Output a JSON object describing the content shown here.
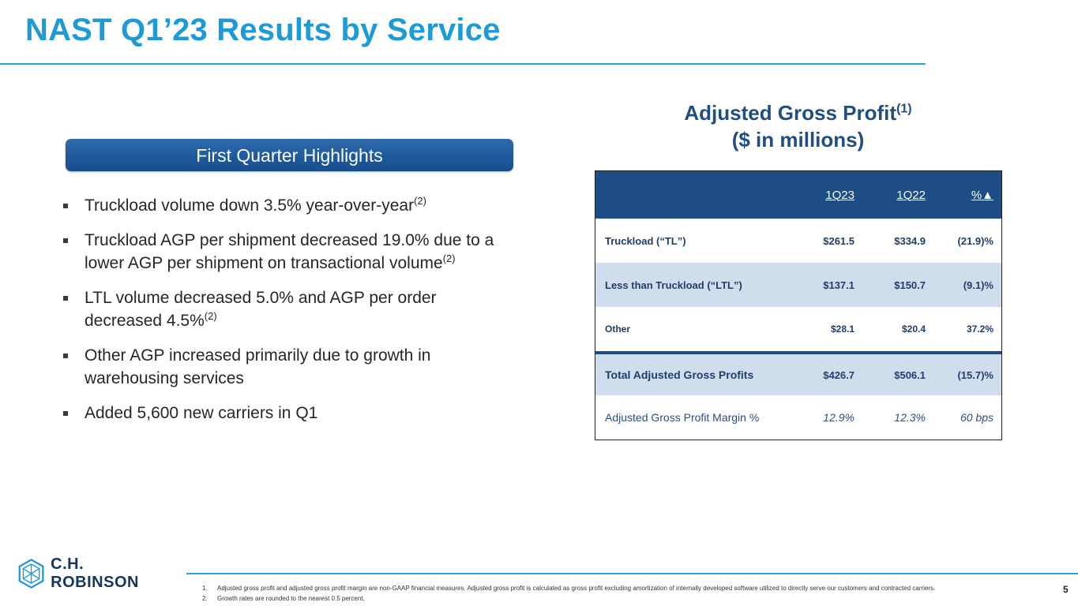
{
  "slide": {
    "title": "NAST Q1’23 Results by Service",
    "page_number": "5"
  },
  "highlights": {
    "banner": "First Quarter Highlights",
    "bullets": [
      {
        "text": "Truckload volume down 3.5% year-over-year",
        "sup": "(2)"
      },
      {
        "text": "Truckload AGP per shipment decreased 19.0% due to a lower AGP per shipment on transactional volume",
        "sup": "(2)"
      },
      {
        "text": "LTL volume decreased 5.0% and AGP per order decreased 4.5%",
        "sup": "(2)"
      },
      {
        "text": "Other AGP increased primarily due to growth in warehousing services",
        "sup": ""
      },
      {
        "text": "Added 5,600 new carriers in Q1",
        "sup": ""
      }
    ]
  },
  "agp": {
    "title_line1": "Adjusted Gross Profit",
    "title_sup": "(1)",
    "title_line2": "($ in millions)",
    "columns": [
      "1Q23",
      "1Q22",
      "%▲"
    ],
    "rows": [
      {
        "label": "Truckload (“TL”)",
        "c1": "$261.5",
        "c2": "$334.9",
        "c3": "(21.9)%"
      },
      {
        "label": "Less than Truckload (“LTL”)",
        "c1": "$137.1",
        "c2": "$150.7",
        "c3": "(9.1)%"
      },
      {
        "label": "Other",
        "c1": "$28.1",
        "c2": "$20.4",
        "c3": "37.2%"
      },
      {
        "label": "Total Adjusted Gross Profits",
        "c1": "$426.7",
        "c2": "$506.1",
        "c3": "(15.7)%"
      },
      {
        "label": "Adjusted Gross Profit Margin %",
        "c1": "12.9%",
        "c2": "12.3%",
        "c3": "60 bps"
      }
    ]
  },
  "brand": {
    "name": "C.H. ROBINSON",
    "color": "#17365f",
    "accent": "#1e9bd7"
  },
  "footnotes": [
    {
      "num": "1.",
      "text": "Adjusted gross profit and adjusted gross profit margin are non-GAAP financial measures. Adjusted gross profit is calculated as gross profit excluding amortization of internally developed software utilized to directly serve our customers and contracted carriers."
    },
    {
      "num": "2.",
      "text": "Growth rates are rounded to the nearest 0.5 percent."
    }
  ]
}
